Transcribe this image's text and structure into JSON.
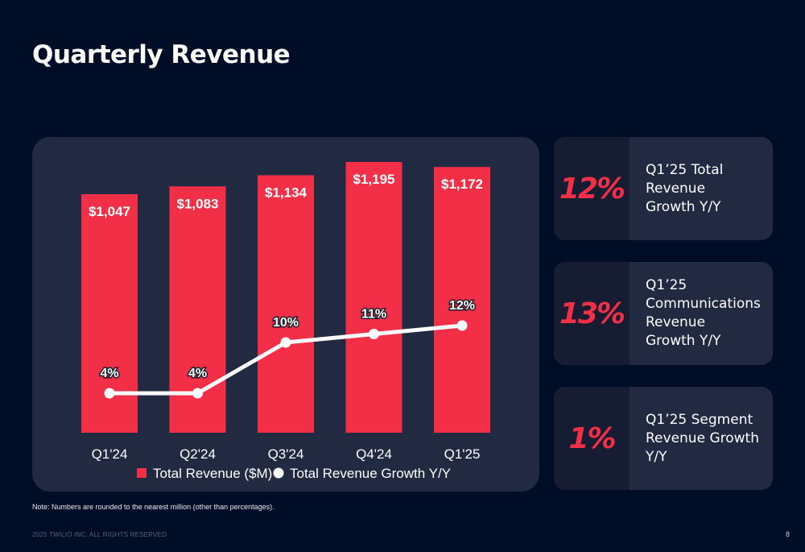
{
  "page": {
    "title": "Quarterly Revenue",
    "note": "Note: Numbers are rounded to the nearest million (other than percentages).",
    "footer": "2025 TWILIO INC. ALL RIGHTS RESERVED",
    "page_number": "8"
  },
  "colors": {
    "background": "#000d26",
    "panel": "#222a42",
    "accent_red": "#f22f46",
    "line_white": "#ffffff"
  },
  "kpis": [
    {
      "value": "12%",
      "label": "Q1’25 Total\nRevenue\nGrowth Y/Y"
    },
    {
      "value": "13%",
      "label": "Q1’25\nCommunications\nRevenue\nGrowth Y/Y"
    },
    {
      "value": "1%",
      "label": "Q1’25 Segment\nRevenue Growth\nY/Y"
    }
  ],
  "chart_data": {
    "type": "bar",
    "categories": [
      "Q1'24",
      "Q2'24",
      "Q3'24",
      "Q4'24",
      "Q1'25"
    ],
    "series": [
      {
        "name": "Total Revenue ($M)",
        "type": "bar",
        "values": [
          1047,
          1083,
          1134,
          1195,
          1172
        ],
        "labels": [
          "$1,047",
          "$1,083",
          "$1,134",
          "$1,195",
          "$1,172"
        ],
        "color": "#f22f46"
      },
      {
        "name": "Total Revenue Growth Y/Y",
        "type": "line",
        "values": [
          4,
          4,
          10,
          11,
          12
        ],
        "labels": [
          "4%",
          "4%",
          "10%",
          "11%",
          "12%"
        ],
        "color": "#ffffff"
      }
    ],
    "legend_position": "bottom",
    "grid": false
  }
}
